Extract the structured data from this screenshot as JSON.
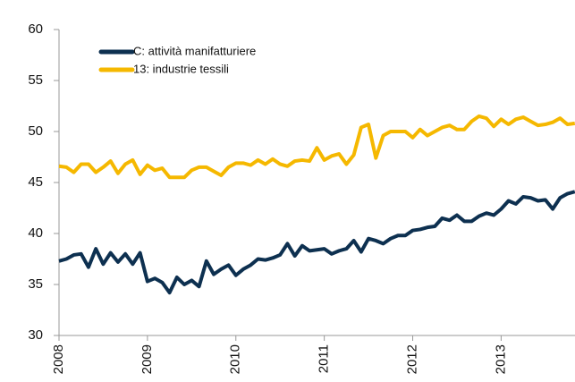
{
  "chart_data": {
    "type": "line",
    "categories": [
      "2008",
      null,
      null,
      null,
      null,
      null,
      null,
      null,
      null,
      null,
      null,
      null,
      "2009",
      null,
      null,
      null,
      null,
      null,
      null,
      null,
      null,
      null,
      null,
      null,
      "2010",
      null,
      null,
      null,
      null,
      null,
      null,
      null,
      null,
      null,
      null,
      null,
      "2011",
      null,
      null,
      null,
      null,
      null,
      null,
      null,
      null,
      null,
      null,
      null,
      "2012",
      null,
      null,
      null,
      null,
      null,
      null,
      null,
      null,
      null,
      null,
      null,
      "2013",
      null,
      null,
      null,
      null,
      null,
      null,
      null,
      null,
      null,
      null
    ],
    "series": [
      {
        "name": "C: attività manifatturiere",
        "color": "#0d3050",
        "values": [
          37.3,
          37.5,
          37.9,
          38.0,
          36.7,
          38.5,
          37.0,
          38.1,
          37.2,
          38.0,
          37.0,
          38.1,
          35.3,
          35.6,
          35.2,
          34.2,
          35.7,
          35.0,
          35.4,
          34.8,
          37.3,
          36.0,
          36.5,
          36.9,
          35.9,
          36.5,
          36.9,
          37.5,
          37.4,
          37.6,
          37.9,
          39.0,
          37.8,
          38.8,
          38.3,
          38.4,
          38.5,
          38.0,
          38.3,
          38.5,
          39.3,
          38.2,
          39.5,
          39.3,
          39.0,
          39.5,
          39.8,
          39.8,
          40.3,
          40.4,
          40.6,
          40.7,
          41.5,
          41.3,
          41.8,
          41.2,
          41.2,
          41.7,
          42.0,
          41.8,
          42.4,
          43.2,
          42.9,
          43.6,
          43.5,
          43.2,
          43.3,
          42.4,
          43.5,
          43.9,
          44.1
        ]
      },
      {
        "name": "13: industrie tessili",
        "color": "#f5b800",
        "values": [
          46.6,
          46.5,
          46.0,
          46.8,
          46.8,
          46.0,
          46.5,
          47.1,
          45.9,
          46.8,
          47.2,
          45.8,
          46.7,
          46.2,
          46.4,
          45.5,
          45.5,
          45.5,
          46.2,
          46.5,
          46.5,
          46.1,
          45.7,
          46.5,
          46.9,
          46.9,
          46.7,
          47.2,
          46.8,
          47.3,
          46.8,
          46.6,
          47.1,
          47.2,
          47.1,
          48.4,
          47.2,
          47.6,
          47.8,
          46.8,
          47.7,
          50.4,
          50.7,
          47.4,
          49.6,
          50.0,
          50.0,
          50.0,
          49.4,
          50.2,
          49.6,
          50.0,
          50.4,
          50.6,
          50.2,
          50.2,
          51.0,
          51.5,
          51.3,
          50.5,
          51.2,
          50.7,
          51.2,
          51.4,
          51.0,
          50.6,
          50.7,
          50.9,
          51.3,
          50.7,
          50.8
        ]
      }
    ],
    "ylim": [
      30,
      60
    ],
    "yticks": [
      30,
      35,
      40,
      45,
      50,
      55,
      60
    ],
    "grid": false,
    "legend": "top-left"
  }
}
